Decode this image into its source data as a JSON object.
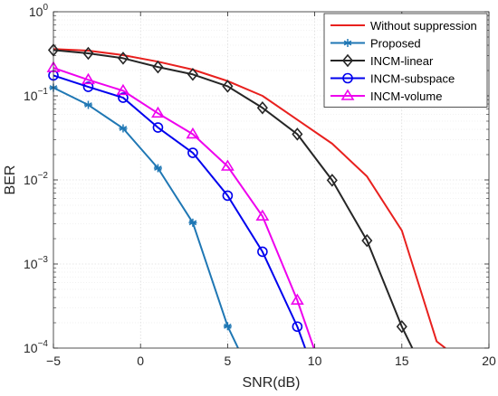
{
  "chart_data": {
    "type": "line",
    "xlabel": "SNR(dB)",
    "ylabel": "BER",
    "xlim": [
      -5,
      20
    ],
    "ylim": [
      0.0001,
      1
    ],
    "yscale": "log",
    "xticks": [
      -5,
      0,
      5,
      10,
      15,
      20
    ],
    "xtick_labels": [
      "−5",
      "0",
      "5",
      "10",
      "15",
      "20"
    ],
    "yticks": [
      {
        "value": 1,
        "base": "10",
        "exp": "0"
      },
      {
        "value": 0.1,
        "base": "10",
        "exp": "−1"
      },
      {
        "value": 0.01,
        "base": "10",
        "exp": "−2"
      },
      {
        "value": 0.001,
        "base": "10",
        "exp": "−3"
      },
      {
        "value": 0.0001,
        "base": "10",
        "exp": "−4"
      }
    ],
    "grid": true,
    "legend_position": "top-right",
    "series": [
      {
        "name": "Without suppression",
        "color": "#e8201e",
        "marker": "none",
        "x": [
          -5,
          -3,
          -1,
          1,
          3,
          5,
          7,
          9,
          11,
          13,
          15,
          17,
          17.5
        ],
        "y": [
          0.36,
          0.345,
          0.305,
          0.255,
          0.205,
          0.15,
          0.1,
          0.052,
          0.027,
          0.011,
          0.0025,
          0.00012,
          0.0001
        ]
      },
      {
        "name": "Proposed",
        "color": "#1f77b4",
        "marker": "asterisk",
        "x": [
          -5,
          -3,
          -1,
          1,
          3,
          5,
          5.6
        ],
        "y": [
          0.125,
          0.078,
          0.041,
          0.0138,
          0.0031,
          0.000182,
          0.0001
        ]
      },
      {
        "name": "INCM-linear",
        "color": "#262626",
        "marker": "diamond",
        "x": [
          -5,
          -3,
          -1,
          1,
          3,
          5,
          7,
          9,
          11,
          13,
          15,
          15.6
        ],
        "y": [
          0.35,
          0.32,
          0.28,
          0.22,
          0.18,
          0.13,
          0.072,
          0.035,
          0.0099,
          0.0019,
          0.00018,
          0.0001
        ]
      },
      {
        "name": "INCM-subspace",
        "color": "#0000ee",
        "marker": "circle",
        "x": [
          -5,
          -3,
          -1,
          1,
          3,
          5,
          7,
          9,
          9.45
        ],
        "y": [
          0.175,
          0.128,
          0.095,
          0.042,
          0.021,
          0.0065,
          0.0014,
          0.00018,
          0.0001
        ]
      },
      {
        "name": "INCM-volume",
        "color": "#ee00ee",
        "marker": "triangle",
        "x": [
          -5,
          -3,
          -1,
          1,
          3,
          5,
          7,
          9,
          9.95
        ],
        "y": [
          0.215,
          0.155,
          0.115,
          0.062,
          0.035,
          0.0145,
          0.0037,
          0.00037,
          0.0001
        ]
      }
    ]
  }
}
